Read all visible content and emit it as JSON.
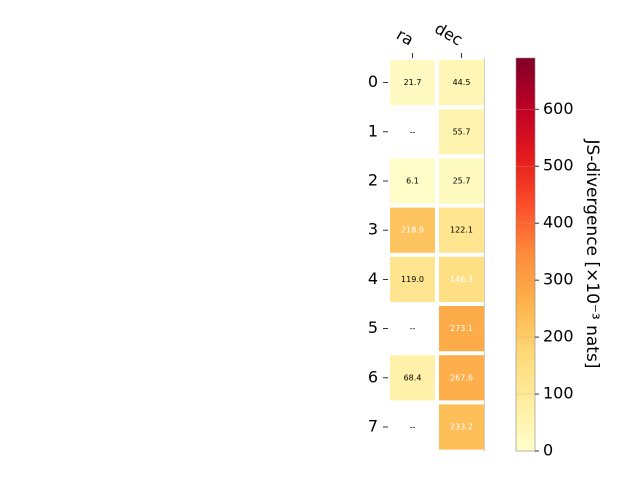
{
  "chart_data": {
    "type": "heatmap",
    "columns": [
      "ra",
      "dec"
    ],
    "rows": [
      "0",
      "1",
      "2",
      "3",
      "4",
      "5",
      "6",
      "7"
    ],
    "values": [
      [
        21.7,
        44.5
      ],
      [
        null,
        55.7
      ],
      [
        6.1,
        25.7
      ],
      [
        218.9,
        122.1
      ],
      [
        119.0,
        146.3
      ],
      [
        null,
        273.1
      ],
      [
        68.4,
        267.6
      ],
      [
        null,
        233.2
      ]
    ],
    "cell_labels": [
      [
        "21.7",
        "44.5"
      ],
      [
        "--",
        "55.7"
      ],
      [
        "6.1",
        "25.7"
      ],
      [
        "218.9",
        "122.1"
      ],
      [
        "119.0",
        "146.3"
      ],
      [
        "--",
        "273.1"
      ],
      [
        "68.4",
        "267.6"
      ],
      [
        "--",
        "233.2"
      ]
    ],
    "colorbar": {
      "label": "JS-divergence [×10⁻³ nats]",
      "min": 0,
      "max": 690,
      "ticks": [
        "0",
        "100",
        "200",
        "300",
        "400",
        "500",
        "600"
      ],
      "colormap": "YlOrRd"
    },
    "grid": false
  }
}
